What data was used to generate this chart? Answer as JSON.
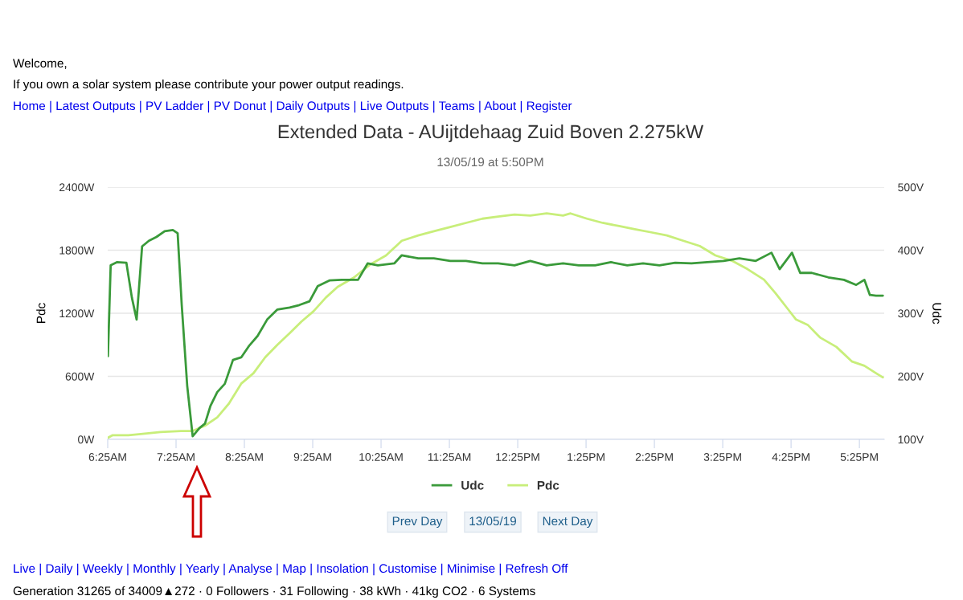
{
  "chart_data": {
    "type": "line",
    "title": "Extended Data - AUijtdehaag Zuid Boven 2.275kW",
    "subtitle": "13/05/19 at 5:50PM",
    "ylabel": "Pdc",
    "y2label": "Udc",
    "xlim": [
      6.4167,
      17.78
    ],
    "xticks": [
      {
        "value": 6.4167,
        "label": "6:25AM"
      },
      {
        "value": 7.4167,
        "label": "7:25AM"
      },
      {
        "value": 8.4167,
        "label": "8:25AM"
      },
      {
        "value": 9.4167,
        "label": "9:25AM"
      },
      {
        "value": 10.4167,
        "label": "10:25AM"
      },
      {
        "value": 11.4167,
        "label": "11:25AM"
      },
      {
        "value": 12.4167,
        "label": "12:25PM"
      },
      {
        "value": 13.4167,
        "label": "1:25PM"
      },
      {
        "value": 14.4167,
        "label": "2:25PM"
      },
      {
        "value": 15.4167,
        "label": "3:25PM"
      },
      {
        "value": 16.4167,
        "label": "4:25PM"
      },
      {
        "value": 17.4167,
        "label": "5:25PM"
      }
    ],
    "ylim": [
      0,
      2400
    ],
    "yticks": [
      {
        "value": 0,
        "label": "0W"
      },
      {
        "value": 600,
        "label": "600W"
      },
      {
        "value": 1200,
        "label": "1200W"
      },
      {
        "value": 1800,
        "label": "1800W"
      },
      {
        "value": 2400,
        "label": "2400W"
      }
    ],
    "y2lim": [
      100,
      500
    ],
    "y2ticks": [
      {
        "value": 100,
        "label": "100V"
      },
      {
        "value": 200,
        "label": "200V"
      },
      {
        "value": 300,
        "label": "300V"
      },
      {
        "value": 400,
        "label": "400V"
      },
      {
        "value": 500,
        "label": "500V"
      }
    ],
    "grid": "y",
    "legend": "bottom",
    "marker": "none",
    "line_style": "solid",
    "series": [
      {
        "name": "Udc",
        "color": "#3a9a3a",
        "axis": "y2",
        "x": [
          6.42,
          6.46,
          6.55,
          6.69,
          6.77,
          6.84,
          6.92,
          7.02,
          7.13,
          7.25,
          7.37,
          7.44,
          7.5,
          7.58,
          7.66,
          7.76,
          7.84,
          7.92,
          8.02,
          8.13,
          8.25,
          8.37,
          8.49,
          8.61,
          8.75,
          8.9,
          9.08,
          9.22,
          9.37,
          9.49,
          9.66,
          9.84,
          10.08,
          10.22,
          10.37,
          10.61,
          10.72,
          10.96,
          11.19,
          11.43,
          11.66,
          11.9,
          12.13,
          12.37,
          12.6,
          12.84,
          13.08,
          13.31,
          13.55,
          13.78,
          14.02,
          14.25,
          14.49,
          14.72,
          14.96,
          15.19,
          15.43,
          15.66,
          15.9,
          16.13,
          16.25,
          16.43,
          16.55,
          16.72,
          16.96,
          17.19,
          17.37,
          17.49,
          17.57,
          17.66,
          17.76
        ],
        "values": [
          232,
          376,
          381,
          380,
          325,
          290,
          406,
          415,
          421,
          430,
          432,
          427,
          313,
          185,
          105,
          118,
          125,
          153,
          175,
          188,
          226,
          230,
          249,
          264,
          290,
          306,
          309,
          313,
          319,
          343,
          352,
          353,
          353,
          379,
          376,
          379,
          392,
          387,
          387,
          383,
          383,
          379,
          379,
          376,
          383,
          376,
          379,
          376,
          376,
          381,
          376,
          379,
          376,
          380,
          379,
          381,
          383,
          387,
          383,
          396,
          370,
          396,
          364,
          364,
          357,
          353,
          345,
          353,
          329,
          328,
          328
        ]
      },
      {
        "name": "Pdc",
        "color": "#c8ee7a",
        "axis": "y",
        "x": [
          6.42,
          6.49,
          6.72,
          6.9,
          7.19,
          7.49,
          7.66,
          7.84,
          8.02,
          8.19,
          8.37,
          8.55,
          8.72,
          8.9,
          9.08,
          9.25,
          9.43,
          9.61,
          9.78,
          10.02,
          10.25,
          10.49,
          10.72,
          10.96,
          11.19,
          11.43,
          11.66,
          11.9,
          12.13,
          12.37,
          12.6,
          12.84,
          13.08,
          13.19,
          13.43,
          13.66,
          13.9,
          14.13,
          14.37,
          14.6,
          14.84,
          15.08,
          15.31,
          15.55,
          15.78,
          16.02,
          16.19,
          16.37,
          16.49,
          16.66,
          16.84,
          17.08,
          17.31,
          17.49,
          17.66,
          17.76
        ],
        "values": [
          15,
          40,
          40,
          50,
          70,
          80,
          80,
          130,
          210,
          340,
          530,
          630,
          780,
          900,
          1010,
          1120,
          1220,
          1350,
          1450,
          1540,
          1660,
          1750,
          1890,
          1940,
          1980,
          2020,
          2060,
          2100,
          2120,
          2140,
          2130,
          2150,
          2130,
          2150,
          2100,
          2060,
          2030,
          2000,
          1970,
          1940,
          1890,
          1840,
          1750,
          1700,
          1620,
          1520,
          1390,
          1240,
          1140,
          1090,
          970,
          880,
          740,
          700,
          630,
          590
        ]
      }
    ],
    "annotations": [
      "Welcome,",
      "If you own a solar system please contribute your power output readings.",
      "Home | Latest Outputs | PV Ladder | PV Donut | Daily Outputs | Live Outputs | Teams | About | Register",
      "Prev Day",
      "13/05/19",
      "Next Day",
      "Live | Daily | Weekly | Monthly | Yearly | Analyse | Map | Insolation | Customise | Minimise | Refresh Off",
      "Generation 31265 of 34009▲272 · 0 Followers · 31 Following · 38 kWh · 41kg CO2 · 6 Systems"
    ]
  }
}
